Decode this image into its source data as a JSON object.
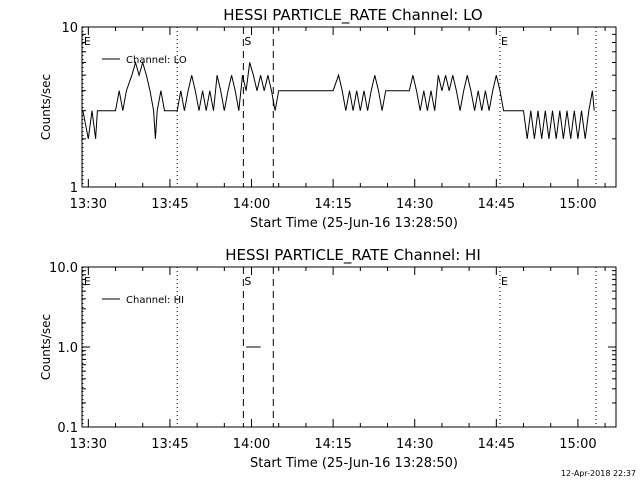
{
  "chart_data": [
    {
      "type": "line",
      "title": "HESSI PARTICLE_RATE Channel: LO",
      "xlabel": "Start Time (25-Jun-16 13:28:50)",
      "ylabel": "Counts/sec",
      "y_scale": "log",
      "ylim": [
        1,
        10
      ],
      "xlim": [
        "13:28:50",
        "15:07:00"
      ],
      "x_ticks": [
        "13:30",
        "13:45",
        "14:00",
        "14:15",
        "14:30",
        "14:45",
        "15:00"
      ],
      "y_ticks": [
        "1",
        "10"
      ],
      "legend": {
        "placement": "top-left",
        "entries": [
          "Channel: LO"
        ]
      },
      "markers": [
        {
          "label": "E",
          "time": "13:29:00",
          "style": "dotted"
        },
        {
          "label": "",
          "time": "13:46:20",
          "style": "dotted"
        },
        {
          "label": "S",
          "time": "13:58:30",
          "style": "dashed"
        },
        {
          "label": "",
          "time": "14:04:00",
          "style": "dashed"
        },
        {
          "label": "E",
          "time": "14:45:40",
          "style": "dotted"
        },
        {
          "label": "",
          "time": "15:03:20",
          "style": "dotted"
        }
      ],
      "series": [
        {
          "name": "Channel: LO",
          "points": [
            [
              "13:29:00",
              3
            ],
            [
              "13:30:00",
              2
            ],
            [
              "13:30:40",
              3
            ],
            [
              "13:31:20",
              2
            ],
            [
              "13:31:40",
              3
            ],
            [
              "13:35:00",
              3
            ],
            [
              "13:35:40",
              4
            ],
            [
              "13:36:20",
              3
            ],
            [
              "13:37:00",
              4
            ],
            [
              "13:38:00",
              5
            ],
            [
              "13:38:40",
              6
            ],
            [
              "13:39:20",
              5
            ],
            [
              "13:40:00",
              6
            ],
            [
              "13:40:40",
              5
            ],
            [
              "13:41:20",
              4
            ],
            [
              "13:42:00",
              3
            ],
            [
              "13:42:20",
              2
            ],
            [
              "13:42:40",
              3
            ],
            [
              "13:43:20",
              4
            ],
            [
              "13:44:00",
              3
            ],
            [
              "13:46:20",
              3
            ],
            [
              "13:47:00",
              4
            ],
            [
              "13:47:40",
              3
            ],
            [
              "13:48:20",
              4
            ],
            [
              "13:49:00",
              5
            ],
            [
              "13:49:40",
              4
            ],
            [
              "13:50:20",
              3
            ],
            [
              "13:51:00",
              4
            ],
            [
              "13:51:40",
              3
            ],
            [
              "13:52:20",
              4
            ],
            [
              "13:53:00",
              3
            ],
            [
              "13:53:40",
              5
            ],
            [
              "13:54:20",
              4
            ],
            [
              "13:55:00",
              3
            ],
            [
              "13:55:40",
              4
            ],
            [
              "13:56:20",
              5
            ],
            [
              "13:57:00",
              4
            ],
            [
              "13:57:40",
              3
            ],
            [
              "13:58:20",
              5
            ],
            [
              "13:59:00",
              4
            ],
            [
              "13:59:40",
              6
            ],
            [
              "14:00:20",
              5
            ],
            [
              "14:01:00",
              4
            ],
            [
              "14:01:40",
              5
            ],
            [
              "14:02:20",
              4
            ],
            [
              "14:03:00",
              5
            ],
            [
              "14:03:40",
              4
            ],
            [
              "14:04:20",
              3
            ],
            [
              "14:05:00",
              4
            ],
            [
              "14:06:00",
              4
            ],
            [
              "14:07:00",
              4
            ],
            [
              "14:08:00",
              4
            ],
            [
              "14:09:00",
              4
            ],
            [
              "14:10:00",
              4
            ],
            [
              "14:11:00",
              4
            ],
            [
              "14:12:00",
              4
            ],
            [
              "14:13:00",
              4
            ],
            [
              "14:14:00",
              4
            ],
            [
              "14:15:00",
              4
            ],
            [
              "14:16:00",
              5
            ],
            [
              "14:16:40",
              4
            ],
            [
              "14:17:20",
              3
            ],
            [
              "14:18:00",
              4
            ],
            [
              "14:18:40",
              3
            ],
            [
              "14:19:20",
              4
            ],
            [
              "14:20:00",
              3
            ],
            [
              "14:20:40",
              4
            ],
            [
              "14:21:20",
              3
            ],
            [
              "14:22:00",
              4
            ],
            [
              "14:22:40",
              5
            ],
            [
              "14:23:20",
              4
            ],
            [
              "14:24:00",
              3
            ],
            [
              "14:24:40",
              4
            ],
            [
              "14:25:20",
              4
            ],
            [
              "14:26:00",
              4
            ],
            [
              "14:27:00",
              4
            ],
            [
              "14:28:00",
              4
            ],
            [
              "14:29:00",
              4
            ],
            [
              "14:29:40",
              5
            ],
            [
              "14:30:20",
              4
            ],
            [
              "14:31:00",
              3
            ],
            [
              "14:31:40",
              4
            ],
            [
              "14:32:20",
              3
            ],
            [
              "14:33:00",
              4
            ],
            [
              "14:33:40",
              3
            ],
            [
              "14:34:20",
              5
            ],
            [
              "14:35:00",
              4
            ],
            [
              "14:35:40",
              5
            ],
            [
              "14:36:20",
              4
            ],
            [
              "14:37:00",
              5
            ],
            [
              "14:37:40",
              4
            ],
            [
              "14:38:20",
              3
            ],
            [
              "14:39:00",
              4
            ],
            [
              "14:39:40",
              5
            ],
            [
              "14:40:20",
              4
            ],
            [
              "14:41:00",
              3
            ],
            [
              "14:41:40",
              4
            ],
            [
              "14:42:20",
              3
            ],
            [
              "14:43:00",
              4
            ],
            [
              "14:43:40",
              3
            ],
            [
              "14:44:20",
              4
            ],
            [
              "14:45:00",
              5
            ],
            [
              "14:45:40",
              4
            ],
            [
              "14:46:20",
              3
            ],
            [
              "14:47:00",
              3
            ],
            [
              "14:48:00",
              3
            ],
            [
              "14:49:00",
              3
            ],
            [
              "14:50:00",
              3
            ],
            [
              "14:50:40",
              2
            ],
            [
              "14:51:20",
              3
            ],
            [
              "14:52:00",
              2
            ],
            [
              "14:52:40",
              3
            ],
            [
              "14:53:20",
              2
            ],
            [
              "14:54:00",
              3
            ],
            [
              "14:54:40",
              2
            ],
            [
              "14:55:20",
              3
            ],
            [
              "14:56:00",
              2
            ],
            [
              "14:56:40",
              3
            ],
            [
              "14:57:20",
              2
            ],
            [
              "14:58:00",
              3
            ],
            [
              "14:58:40",
              2
            ],
            [
              "14:59:20",
              3
            ],
            [
              "15:00:00",
              2
            ],
            [
              "15:00:40",
              3
            ],
            [
              "15:01:20",
              2
            ],
            [
              "15:02:00",
              3
            ],
            [
              "15:02:40",
              4
            ],
            [
              "15:03:00",
              3
            ]
          ]
        }
      ]
    },
    {
      "type": "line",
      "title": "HESSI PARTICLE_RATE Channel: HI",
      "xlabel": "Start Time (25-Jun-16 13:28:50)",
      "ylabel": "Counts/sec",
      "y_scale": "log",
      "ylim": [
        0.1,
        10
      ],
      "xlim": [
        "13:28:50",
        "15:07:00"
      ],
      "x_ticks": [
        "13:30",
        "13:45",
        "14:00",
        "14:15",
        "14:30",
        "14:45",
        "15:00"
      ],
      "y_ticks": [
        "0.1",
        "1.0",
        "10.0"
      ],
      "legend": {
        "placement": "top-left",
        "entries": [
          "Channel: HI"
        ]
      },
      "markers": [
        {
          "label": "E",
          "time": "13:29:00",
          "style": "dotted"
        },
        {
          "label": "",
          "time": "13:46:20",
          "style": "dotted"
        },
        {
          "label": "S",
          "time": "13:58:30",
          "style": "dashed"
        },
        {
          "label": "",
          "time": "14:04:00",
          "style": "dashed"
        },
        {
          "label": "E",
          "time": "14:45:40",
          "style": "dotted"
        },
        {
          "label": "",
          "time": "15:03:20",
          "style": "dotted"
        }
      ],
      "series": [
        {
          "name": "Channel: HI",
          "points": [
            [
              "13:59:00",
              1.0
            ],
            [
              "14:01:40",
              1.0
            ]
          ]
        }
      ]
    }
  ],
  "footer": {
    "timestamp": "12-Apr-2018 22:37"
  }
}
